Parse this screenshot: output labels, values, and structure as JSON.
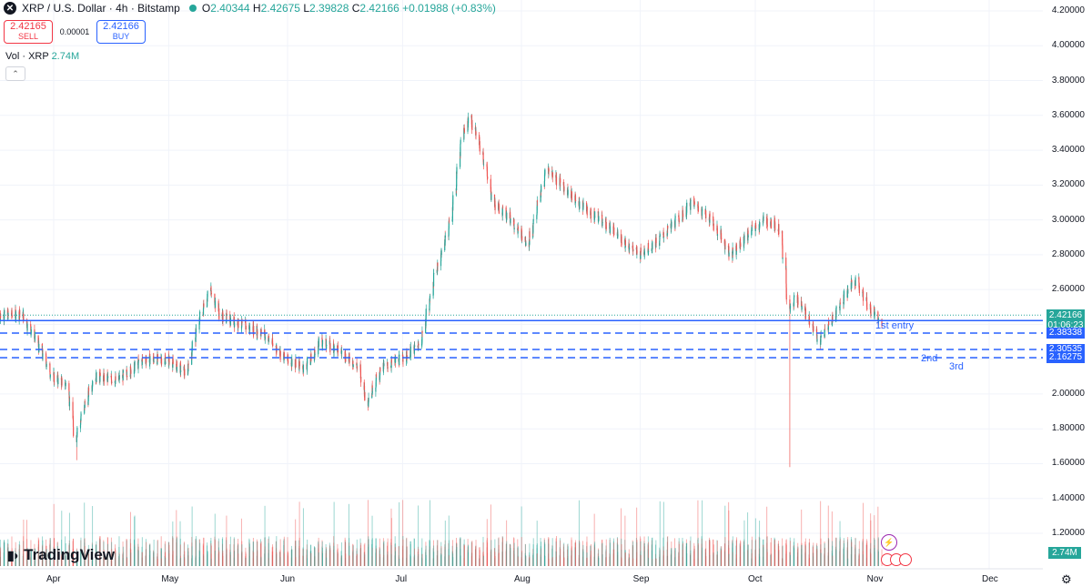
{
  "header": {
    "symbol": "XRP / U.S. Dollar · 4h · Bitstamp",
    "o_k": "O",
    "o": "2.40344",
    "h_k": "H",
    "h": "2.42675",
    "l_k": "L",
    "l": "2.39828",
    "c_k": "C",
    "c": "2.42166",
    "chg": "+0.01988 (+0.83%)"
  },
  "trade": {
    "sell_price": "2.42165",
    "sell_label": "SELL",
    "spread": "0.00001",
    "buy_price": "2.42166",
    "buy_label": "BUY"
  },
  "volume": {
    "label": "Vol · XRP",
    "value": "2.74M"
  },
  "price_axis": [
    "4.20000",
    "4.00000",
    "3.80000",
    "3.60000",
    "3.40000",
    "3.20000",
    "3.00000",
    "2.80000",
    "2.60000",
    "2.40000",
    "2.20000",
    "2.00000",
    "1.80000",
    "1.60000",
    "1.40000",
    "1.20000"
  ],
  "time_axis": [
    "Apr",
    "May",
    "Jun",
    "Jul",
    "Aug",
    "Sep",
    "Oct",
    "Nov",
    "Dec"
  ],
  "current": {
    "price": "2.42166",
    "countdown": "01:06:23"
  },
  "levels": [
    {
      "price": "2.38338",
      "note": "1st entry"
    },
    {
      "price": "2.30535",
      "note": "2nd"
    },
    {
      "price": "2.16275",
      "note": "3rd"
    }
  ],
  "volume_tag": "2.74M",
  "brand": "TradingView",
  "colors": {
    "up": "#26a69a",
    "down": "#ef5350",
    "level": "#2962ff",
    "grid": "#f0f3fa"
  },
  "icons": {
    "symbol": "xrp-logo-icon",
    "settings": "gear-icon",
    "collapse": "chevron-up-icon",
    "flash": "lightning-icon"
  },
  "chart_data": {
    "type": "candlestick",
    "title": "XRP / U.S. Dollar · 4h · Bitstamp",
    "ylim": [
      1.1,
      4.25
    ],
    "x_range": [
      "2025-03-18",
      "2025-12-15"
    ],
    "y_ticks": [
      4.2,
      4.0,
      3.8,
      3.6,
      3.4,
      3.2,
      3.0,
      2.8,
      2.6,
      2.4,
      2.2,
      2.0,
      1.8,
      1.6,
      1.4,
      1.2
    ],
    "x_ticks": [
      "Apr",
      "May",
      "Jun",
      "Jul",
      "Aug",
      "Sep",
      "Oct",
      "Nov",
      "Dec"
    ],
    "series": [
      {
        "name": "XRP/USD",
        "points": [
          [
            "2025-03-18",
            2.45
          ],
          [
            "2025-03-24",
            2.46
          ],
          [
            "2025-03-28",
            2.3
          ],
          [
            "2025-04-01",
            2.1
          ],
          [
            "2025-04-05",
            2.05
          ],
          [
            "2025-04-07",
            1.75
          ],
          [
            "2025-04-09",
            1.9
          ],
          [
            "2025-04-12",
            2.1
          ],
          [
            "2025-04-18",
            2.08
          ],
          [
            "2025-04-25",
            2.2
          ],
          [
            "2025-05-01",
            2.2
          ],
          [
            "2025-05-06",
            2.12
          ],
          [
            "2025-05-09",
            2.4
          ],
          [
            "2025-05-12",
            2.6
          ],
          [
            "2025-05-15",
            2.45
          ],
          [
            "2025-05-20",
            2.4
          ],
          [
            "2025-05-26",
            2.35
          ],
          [
            "2025-06-01",
            2.2
          ],
          [
            "2025-06-06",
            2.15
          ],
          [
            "2025-06-10",
            2.3
          ],
          [
            "2025-06-15",
            2.25
          ],
          [
            "2025-06-20",
            2.15
          ],
          [
            "2025-06-22",
            1.95
          ],
          [
            "2025-06-26",
            2.15
          ],
          [
            "2025-07-01",
            2.2
          ],
          [
            "2025-07-06",
            2.28
          ],
          [
            "2025-07-10",
            2.7
          ],
          [
            "2025-07-14",
            3.0
          ],
          [
            "2025-07-17",
            3.5
          ],
          [
            "2025-07-19",
            3.58
          ],
          [
            "2025-07-22",
            3.4
          ],
          [
            "2025-07-25",
            3.1
          ],
          [
            "2025-07-30",
            3.0
          ],
          [
            "2025-08-03",
            2.85
          ],
          [
            "2025-08-08",
            3.3
          ],
          [
            "2025-08-12",
            3.2
          ],
          [
            "2025-08-16",
            3.1
          ],
          [
            "2025-08-22",
            3.0
          ],
          [
            "2025-08-27",
            2.9
          ],
          [
            "2025-09-01",
            2.8
          ],
          [
            "2025-09-06",
            2.88
          ],
          [
            "2025-09-12",
            3.02
          ],
          [
            "2025-09-15",
            3.1
          ],
          [
            "2025-09-20",
            3.0
          ],
          [
            "2025-09-25",
            2.8
          ],
          [
            "2025-10-01",
            2.95
          ],
          [
            "2025-10-04",
            3.0
          ],
          [
            "2025-10-08",
            2.95
          ],
          [
            "2025-10-10",
            2.5
          ],
          [
            "2025-10-12",
            2.55
          ],
          [
            "2025-10-15",
            2.45
          ],
          [
            "2025-10-18",
            2.3
          ],
          [
            "2025-10-22",
            2.45
          ],
          [
            "2025-10-26",
            2.62
          ],
          [
            "2025-10-28",
            2.65
          ],
          [
            "2025-10-31",
            2.5
          ],
          [
            "2025-11-03",
            2.42
          ]
        ]
      }
    ]
  }
}
